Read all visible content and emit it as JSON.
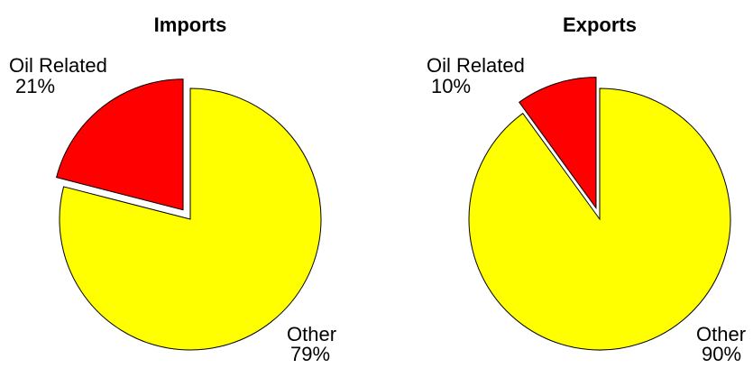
{
  "chart_data": [
    {
      "type": "pie",
      "title": "Imports",
      "categories": [
        "Oil Related",
        "Other"
      ],
      "values": [
        21,
        79
      ],
      "value_labels": [
        "21%",
        "79%"
      ],
      "colors": [
        "#ff0000",
        "#ffff00"
      ],
      "explode": [
        true,
        false
      ]
    },
    {
      "type": "pie",
      "title": "Exports",
      "categories": [
        "Oil Related",
        "Other"
      ],
      "values": [
        10,
        90
      ],
      "value_labels": [
        "10%",
        "90%"
      ],
      "colors": [
        "#ff0000",
        "#ffff00"
      ],
      "explode": [
        true,
        false
      ]
    }
  ]
}
